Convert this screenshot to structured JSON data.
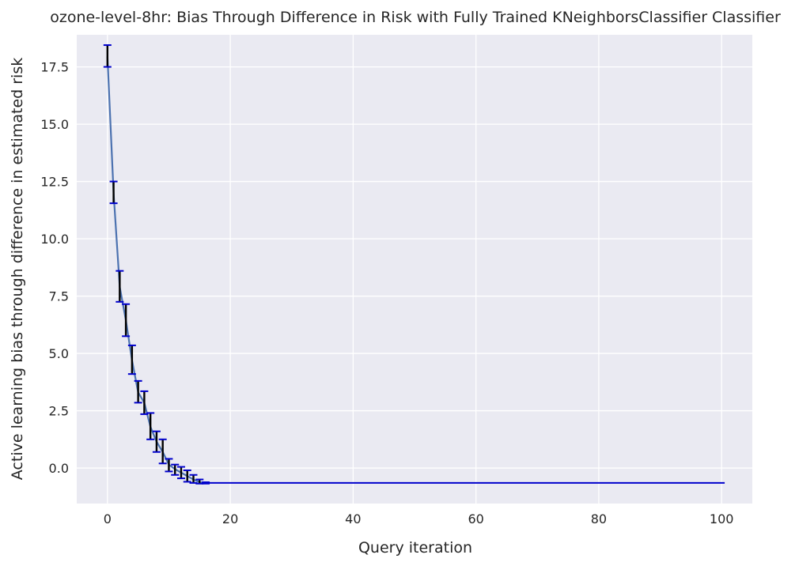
{
  "chart_data": {
    "type": "line",
    "title": "ozone-level-8hr: Bias Through Difference in Risk with Fully Trained KNeighborsClassifier Classifier",
    "xlabel": "Query iteration",
    "ylabel": "Active learning bias through difference in estimated risk",
    "xlim": [
      -5,
      105
    ],
    "ylim": [
      -1.55,
      18.9
    ],
    "xticks": [
      0,
      20,
      40,
      60,
      80,
      100
    ],
    "yticks": [
      0.0,
      2.5,
      5.0,
      7.5,
      10.0,
      12.5,
      15.0,
      17.5
    ],
    "ytick_labels": [
      "0.0",
      "2.5",
      "5.0",
      "7.5",
      "10.0",
      "12.5",
      "15.0",
      "17.5"
    ],
    "grid": true,
    "colors": {
      "background": "#eaeaf2",
      "grid": "#ffffff",
      "mean_line": "#4c72b0",
      "error_bar": "#000000",
      "cap": "#0000cc",
      "flat_line": "#0000cc"
    },
    "series": [
      {
        "x": [
          0,
          1,
          2,
          3,
          4,
          5,
          6,
          7,
          8,
          9,
          10,
          11,
          12,
          13,
          14,
          15,
          16
        ],
        "y": [
          17.95,
          12.0,
          7.9,
          6.45,
          4.7,
          3.3,
          2.85,
          1.8,
          1.15,
          0.7,
          0.15,
          -0.05,
          -0.2,
          -0.35,
          -0.5,
          -0.62,
          -0.65
        ],
        "yerr_low": [
          17.5,
          11.55,
          7.25,
          5.75,
          4.1,
          2.85,
          2.35,
          1.25,
          0.7,
          0.2,
          -0.15,
          -0.3,
          -0.45,
          -0.6,
          -0.65,
          -0.68,
          -0.68
        ],
        "yerr_high": [
          18.45,
          12.5,
          8.6,
          7.15,
          5.35,
          3.8,
          3.35,
          2.4,
          1.6,
          1.25,
          0.4,
          0.15,
          0.05,
          -0.1,
          -0.3,
          -0.5,
          -0.62
        ]
      }
    ],
    "flat_segment": {
      "x_start": 16,
      "x_end": 100.5,
      "y": -0.65
    }
  }
}
